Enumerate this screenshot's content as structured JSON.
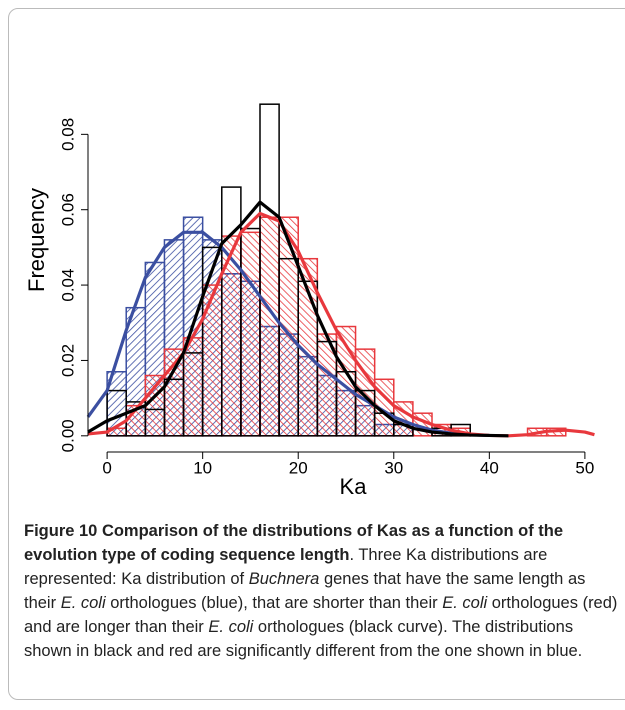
{
  "chart_data": {
    "type": "histogram",
    "x_label": "Ka",
    "y_label": "Frequency",
    "xlim": [
      -2,
      52
    ],
    "ylim": [
      -0.0035,
      0.0915
    ],
    "xticks": [
      0,
      10,
      20,
      30,
      40,
      50
    ],
    "yticks": [
      {
        "value": 0,
        "label": "0.00"
      },
      {
        "value": 0.02,
        "label": "0.02"
      },
      {
        "value": 0.04,
        "label": "0.04"
      },
      {
        "value": 0.06,
        "label": "0.06"
      },
      {
        "value": 0.08,
        "label": "0.08"
      }
    ],
    "bins": [
      0,
      2,
      4,
      6,
      8,
      10,
      12,
      14,
      16,
      18,
      20,
      22,
      24,
      26,
      28,
      30,
      32,
      34,
      36,
      38,
      40,
      42,
      44,
      46,
      48,
      50
    ],
    "histograms": [
      {
        "color": "#3b4fa1",
        "fill": "hatch-down",
        "values": [
          0.017,
          0.034,
          0.046,
          0.052,
          0.058,
          0.052,
          0.043,
          0.041,
          0.029,
          0.027,
          0.021,
          0.016,
          0.012,
          0.008,
          0.003,
          0.003,
          0,
          0,
          0,
          0,
          0,
          0,
          0,
          0,
          0
        ]
      },
      {
        "color": "#e8383d",
        "fill": "hatch-up",
        "values": [
          0.002,
          0.008,
          0.016,
          0.023,
          0.026,
          0.04,
          0.053,
          0.054,
          0.058,
          0.058,
          0.047,
          0.027,
          0.029,
          0.023,
          0.015,
          0.009,
          0.006,
          0.003,
          0.002,
          0,
          0,
          0,
          0.002,
          0.002,
          0
        ]
      },
      {
        "color": "#000000",
        "fill": "none",
        "values": [
          0.012,
          0.009,
          0.007,
          0.015,
          0.022,
          0.05,
          0.066,
          0.055,
          0.088,
          0.047,
          0.041,
          0.025,
          0.017,
          0.012,
          0.006,
          0.003,
          0,
          0.002,
          0.003,
          0,
          0,
          0,
          0,
          0,
          0
        ]
      }
    ],
    "density_curves": [
      {
        "color": "#3b4fa1",
        "x": [
          -2,
          0,
          2,
          4,
          6,
          8,
          10,
          12,
          14,
          16,
          18,
          20,
          22,
          24,
          26,
          28,
          30,
          32,
          34,
          36,
          38,
          40
        ],
        "values": [
          0.005,
          0.012,
          0.028,
          0.042,
          0.05,
          0.054,
          0.054,
          0.05,
          0.044,
          0.037,
          0.03,
          0.024,
          0.019,
          0.015,
          0.011,
          0.008,
          0.005,
          0.003,
          0.0015,
          0.0007,
          0.0003,
          0.0001
        ]
      },
      {
        "color": "#e8383d",
        "x": [
          -2,
          0,
          2,
          4,
          6,
          8,
          10,
          12,
          14,
          16,
          18,
          20,
          22,
          24,
          26,
          28,
          30,
          32,
          34,
          36,
          38,
          40,
          42,
          44,
          46,
          48,
          50,
          51
        ],
        "values": [
          0.0005,
          0.001,
          0.004,
          0.01,
          0.016,
          0.022,
          0.031,
          0.043,
          0.054,
          0.059,
          0.057,
          0.049,
          0.038,
          0.028,
          0.02,
          0.013,
          0.008,
          0.005,
          0.003,
          0.0015,
          0.0005,
          0.0001,
          0,
          0.0003,
          0.0012,
          0.0015,
          0.001,
          0.0003
        ]
      },
      {
        "color": "#000000",
        "x": [
          -2,
          0,
          2,
          4,
          6,
          8,
          10,
          12,
          14,
          16,
          18,
          20,
          22,
          24,
          26,
          28,
          30,
          32,
          34,
          36,
          38,
          40,
          42
        ],
        "values": [
          0.001,
          0.004,
          0.006,
          0.008,
          0.013,
          0.022,
          0.037,
          0.051,
          0.056,
          0.062,
          0.058,
          0.045,
          0.032,
          0.021,
          0.013,
          0.008,
          0.004,
          0.002,
          0.001,
          0.0005,
          0.0002,
          0.0001,
          0
        ]
      }
    ]
  },
  "caption": {
    "title": "Figure 10 Comparison of the distributions of Kas as a function of the evolution type of coding sequence length",
    "segments": [
      {
        "text": ". Three Ka distributions are represented: Ka distribution of ",
        "italic": false
      },
      {
        "text": "Buchnera",
        "italic": true
      },
      {
        "text": " genes that have the same length as their ",
        "italic": false
      },
      {
        "text": "E. coli",
        "italic": true
      },
      {
        "text": " orthologues (blue), that are shorter than their ",
        "italic": false
      },
      {
        "text": "E. coli",
        "italic": true
      },
      {
        "text": " orthologues (red) and are longer than their ",
        "italic": false
      },
      {
        "text": "E. coli",
        "italic": true
      },
      {
        "text": " orthologues (black curve). The distributions shown in black and red are significantly different from the one shown in blue.",
        "italic": false
      }
    ]
  }
}
